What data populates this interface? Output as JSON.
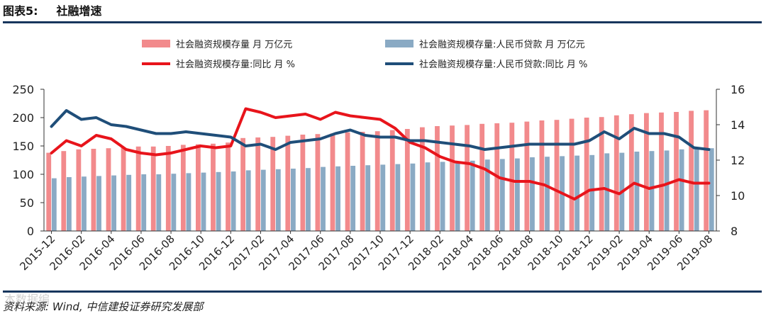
{
  "header": {
    "fig_num": "图表5:",
    "fig_title": "社融增速"
  },
  "footer": {
    "source": "资料来源: Wind, 中信建投证券研究发展部",
    "watermark": "本数据编"
  },
  "chart_data": {
    "type": "bar",
    "categories": [
      "2015-12",
      "2016-01",
      "2016-02",
      "2016-03",
      "2016-04",
      "2016-05",
      "2016-06",
      "2016-07",
      "2016-08",
      "2016-09",
      "2016-10",
      "2016-11",
      "2016-12",
      "2017-01",
      "2017-02",
      "2017-03",
      "2017-04",
      "2017-05",
      "2017-06",
      "2017-07",
      "2017-08",
      "2017-09",
      "2017-10",
      "2017-11",
      "2017-12",
      "2018-01",
      "2018-02",
      "2018-03",
      "2018-04",
      "2018-05",
      "2018-06",
      "2018-07",
      "2018-08",
      "2018-09",
      "2018-10",
      "2018-11",
      "2018-12",
      "2019-01",
      "2019-02",
      "2019-03",
      "2019-04",
      "2019-05",
      "2019-06",
      "2019-07",
      "2019-08"
    ],
    "x_tick_labels": [
      "2015-12",
      "2016-02",
      "2016-04",
      "2016-06",
      "2016-08",
      "2016-10",
      "2016-12",
      "2017-02",
      "2017-04",
      "2017-06",
      "2017-08",
      "2017-10",
      "2017-12",
      "2018-02",
      "2018-04",
      "2018-06",
      "2018-08",
      "2018-10",
      "2018-12",
      "2019-02",
      "2019-04",
      "2019-06",
      "2019-08"
    ],
    "y_left": {
      "ylim": [
        0,
        250
      ],
      "ticks": [
        "0",
        "50",
        "100",
        "150",
        "200",
        "250"
      ]
    },
    "y_right": {
      "ylim": [
        8,
        16
      ],
      "ticks": [
        "8",
        "10",
        "12",
        "14",
        "16"
      ]
    },
    "series": [
      {
        "name": "社会融资规模存量 月 万亿元",
        "kind": "bar",
        "axis": "left",
        "color": "#f28a8c",
        "values": [
          138,
          141,
          144,
          145,
          146,
          147,
          149,
          149,
          150,
          152,
          153,
          154,
          156,
          164,
          165,
          166,
          168,
          170,
          171,
          172,
          174,
          175,
          176,
          178,
          180,
          183,
          185,
          186,
          187,
          189,
          190,
          191,
          193,
          195,
          196,
          198,
          200,
          201,
          204,
          206,
          208,
          209,
          210,
          212,
          213
        ]
      },
      {
        "name": "社会融资规模存量:人民币贷款 月 万亿元",
        "kind": "bar",
        "axis": "left",
        "color": "#8aaac4",
        "values": [
          93,
          95,
          96,
          97,
          98,
          99,
          100,
          100,
          101,
          102,
          103,
          104,
          105,
          107,
          108,
          109,
          110,
          111,
          113,
          114,
          115,
          116,
          117,
          118,
          119,
          121,
          122,
          123,
          124,
          126,
          127,
          128,
          130,
          131,
          132,
          133,
          134,
          137,
          138,
          140,
          141,
          142,
          144,
          145,
          146
        ]
      },
      {
        "name": "社会融资规模存量:同比 月 %",
        "kind": "line",
        "axis": "right",
        "color": "#e8141b",
        "values": [
          12.4,
          13.1,
          12.8,
          13.4,
          13.2,
          12.6,
          12.4,
          12.3,
          12.4,
          12.6,
          12.8,
          12.7,
          12.8,
          14.9,
          14.7,
          14.4,
          14.5,
          14.6,
          14.3,
          14.7,
          14.5,
          14.4,
          14.3,
          13.8,
          13.0,
          12.7,
          12.2,
          11.9,
          11.8,
          11.5,
          11.0,
          10.8,
          10.8,
          10.6,
          10.2,
          9.8,
          10.3,
          10.4,
          10.1,
          10.7,
          10.4,
          10.6,
          10.9,
          10.7,
          10.7
        ]
      },
      {
        "name": "社会融资规模存量:人民币贷款:同比 月 %",
        "kind": "line",
        "axis": "right",
        "color": "#1f4e79",
        "values": [
          13.9,
          14.8,
          14.3,
          14.4,
          14.0,
          13.9,
          13.7,
          13.5,
          13.5,
          13.6,
          13.5,
          13.4,
          13.3,
          12.8,
          12.9,
          12.6,
          13.0,
          13.1,
          13.2,
          13.5,
          13.7,
          13.4,
          13.3,
          13.3,
          13.1,
          13.1,
          13.0,
          12.9,
          12.8,
          12.6,
          12.7,
          12.8,
          12.9,
          12.9,
          12.9,
          12.9,
          13.1,
          13.6,
          13.2,
          13.8,
          13.5,
          13.5,
          13.3,
          12.7,
          12.6
        ]
      }
    ],
    "legend_position": "top",
    "grid": false
  }
}
